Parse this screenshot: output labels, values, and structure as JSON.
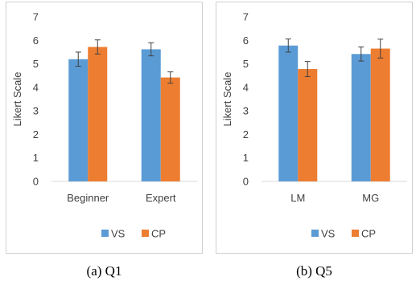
{
  "chart_data": [
    {
      "type": "bar",
      "categories": [
        "Beginner",
        "Expert"
      ],
      "series": [
        {
          "name": "VS",
          "values": [
            5.2,
            5.62
          ],
          "errors": [
            0.3,
            0.28
          ]
        },
        {
          "name": "CP",
          "values": [
            5.72,
            4.42
          ],
          "errors": [
            0.3,
            0.24
          ]
        }
      ],
      "ylabel": "Likert Scale",
      "ylim": [
        0,
        7
      ],
      "yticks": [
        "0",
        "1",
        "2",
        "3",
        "4",
        "5",
        "6",
        "7"
      ],
      "grid": false,
      "legend": "bottom",
      "caption": "(a)  Q1"
    },
    {
      "type": "bar",
      "categories": [
        "LM",
        "MG"
      ],
      "series": [
        {
          "name": "VS",
          "values": [
            5.78,
            5.42
          ],
          "errors": [
            0.28,
            0.3
          ]
        },
        {
          "name": "CP",
          "values": [
            4.78,
            5.65
          ],
          "errors": [
            0.32,
            0.4
          ]
        }
      ],
      "ylabel": "Likert Scale",
      "ylim": [
        0,
        7
      ],
      "yticks": [
        "0",
        "1",
        "2",
        "3",
        "4",
        "5",
        "6",
        "7"
      ],
      "grid": false,
      "legend": "bottom",
      "caption": "(b)  Q5"
    }
  ],
  "colors": {
    "VS": "#5b9bd5",
    "CP": "#ed7d31",
    "error_bar": "#404040"
  }
}
